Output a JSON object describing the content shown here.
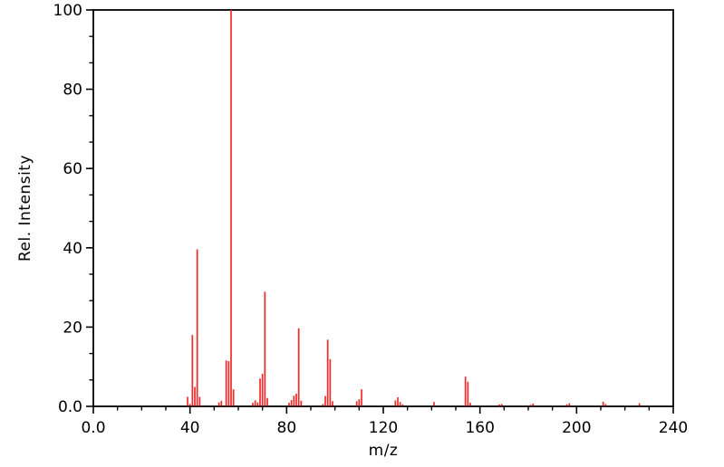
{
  "figure": {
    "xlabel": "m/z",
    "ylabel": "Rel. Intensity",
    "background_color": "#ffffff",
    "frame_color": "#000000",
    "bar_color": "#f02b2b",
    "text_color": "#000000"
  },
  "chart_data": {
    "type": "bar",
    "subtype": "mass-spectrum-stick-plot",
    "title": "",
    "xlabel": "m/z",
    "ylabel": "Rel. Intensity",
    "xlim": [
      0,
      240
    ],
    "ylim": [
      0,
      100
    ],
    "x_major_ticks": [
      0,
      40,
      80,
      120,
      160,
      200,
      240
    ],
    "x_tick_labels": [
      "0.0",
      "40",
      "80",
      "120",
      "160",
      "200",
      "240"
    ],
    "x_minor_step": 10,
    "y_major_ticks": [
      0,
      20,
      40,
      60,
      80,
      100
    ],
    "y_tick_labels": [
      "0.0",
      "20",
      "40",
      "60",
      "80",
      "100"
    ],
    "y_minors_per_interval": 2,
    "grid": false,
    "legend": null,
    "bar_color": "#f02b2b",
    "peaks": [
      {
        "mz": 39,
        "intensity": 2.4
      },
      {
        "mz": 40,
        "intensity": 0.6
      },
      {
        "mz": 41,
        "intensity": 18.0
      },
      {
        "mz": 42,
        "intensity": 4.9
      },
      {
        "mz": 43,
        "intensity": 39.6
      },
      {
        "mz": 44,
        "intensity": 2.4
      },
      {
        "mz": 52,
        "intensity": 1.0
      },
      {
        "mz": 53,
        "intensity": 1.4
      },
      {
        "mz": 55,
        "intensity": 11.6
      },
      {
        "mz": 56,
        "intensity": 11.4
      },
      {
        "mz": 57,
        "intensity": 100.0
      },
      {
        "mz": 58,
        "intensity": 4.3
      },
      {
        "mz": 66,
        "intensity": 0.9
      },
      {
        "mz": 67,
        "intensity": 1.5
      },
      {
        "mz": 68,
        "intensity": 1.0
      },
      {
        "mz": 69,
        "intensity": 7.0
      },
      {
        "mz": 70,
        "intensity": 8.2
      },
      {
        "mz": 71,
        "intensity": 28.9
      },
      {
        "mz": 72,
        "intensity": 2.1
      },
      {
        "mz": 81,
        "intensity": 0.9
      },
      {
        "mz": 82,
        "intensity": 1.6
      },
      {
        "mz": 83,
        "intensity": 2.7
      },
      {
        "mz": 84,
        "intensity": 3.2
      },
      {
        "mz": 85,
        "intensity": 19.7
      },
      {
        "mz": 86,
        "intensity": 1.4
      },
      {
        "mz": 95,
        "intensity": 0.6
      },
      {
        "mz": 96,
        "intensity": 2.6
      },
      {
        "mz": 97,
        "intensity": 16.8
      },
      {
        "mz": 98,
        "intensity": 11.9
      },
      {
        "mz": 99,
        "intensity": 1.3
      },
      {
        "mz": 109,
        "intensity": 1.3
      },
      {
        "mz": 110,
        "intensity": 1.8
      },
      {
        "mz": 111,
        "intensity": 4.3
      },
      {
        "mz": 125,
        "intensity": 1.5
      },
      {
        "mz": 126,
        "intensity": 2.3
      },
      {
        "mz": 127,
        "intensity": 1.1
      },
      {
        "mz": 128,
        "intensity": 0.5
      },
      {
        "mz": 141,
        "intensity": 1.1
      },
      {
        "mz": 154,
        "intensity": 7.5
      },
      {
        "mz": 155,
        "intensity": 6.2
      },
      {
        "mz": 156,
        "intensity": 0.9
      },
      {
        "mz": 168,
        "intensity": 0.5
      },
      {
        "mz": 169,
        "intensity": 0.6
      },
      {
        "mz": 181,
        "intensity": 0.4
      },
      {
        "mz": 182,
        "intensity": 0.7
      },
      {
        "mz": 196,
        "intensity": 0.5
      },
      {
        "mz": 197,
        "intensity": 0.8
      },
      {
        "mz": 211,
        "intensity": 1.2
      },
      {
        "mz": 212,
        "intensity": 0.6
      },
      {
        "mz": 226,
        "intensity": 0.8
      }
    ]
  }
}
